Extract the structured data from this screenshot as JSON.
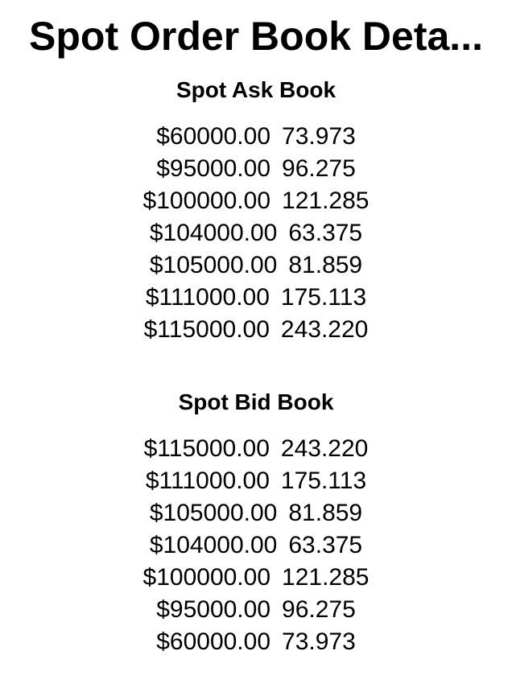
{
  "title": "Spot Order Book Deta...",
  "ask_book": {
    "heading": "Spot Ask Book",
    "rows": [
      {
        "price": "$60000.00",
        "qty": "73.973"
      },
      {
        "price": "$95000.00",
        "qty": "96.275"
      },
      {
        "price": "$100000.00",
        "qty": "121.285"
      },
      {
        "price": "$104000.00",
        "qty": "63.375"
      },
      {
        "price": "$105000.00",
        "qty": "81.859"
      },
      {
        "price": "$111000.00",
        "qty": "175.113"
      },
      {
        "price": "$115000.00",
        "qty": "243.220"
      }
    ]
  },
  "bid_book": {
    "heading": "Spot Bid Book",
    "rows": [
      {
        "price": "$115000.00",
        "qty": "243.220"
      },
      {
        "price": "$111000.00",
        "qty": "175.113"
      },
      {
        "price": "$105000.00",
        "qty": "81.859"
      },
      {
        "price": "$104000.00",
        "qty": "63.375"
      },
      {
        "price": "$100000.00",
        "qty": "121.285"
      },
      {
        "price": "$95000.00",
        "qty": "96.275"
      },
      {
        "price": "$60000.00",
        "qty": "73.973"
      }
    ]
  }
}
